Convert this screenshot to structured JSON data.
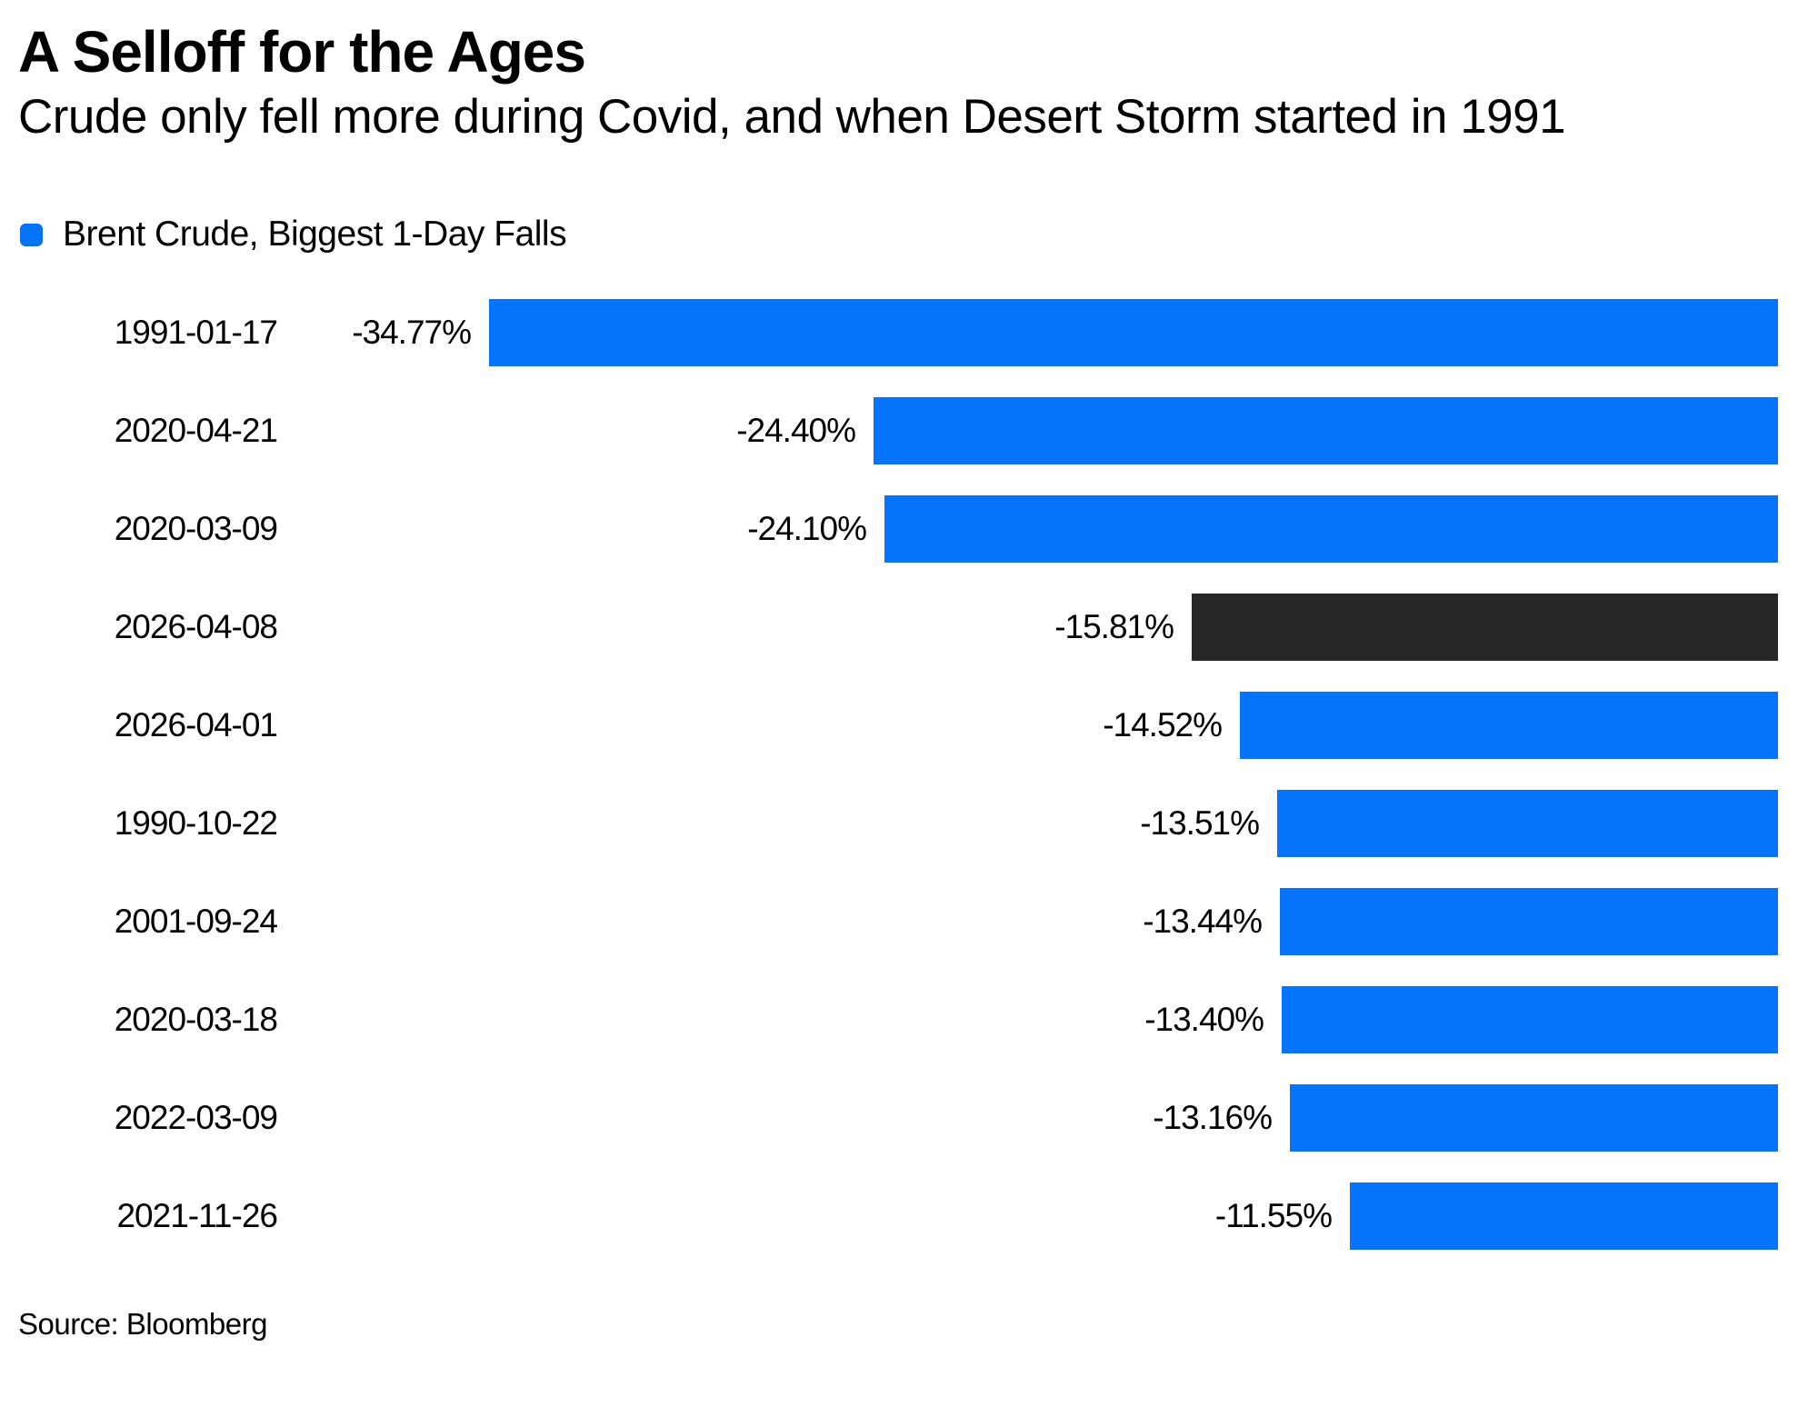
{
  "header": {
    "title": "A Selloff for the Ages",
    "subtitle": "Crude only fell more during Covid, and when Desert Storm started in 1991"
  },
  "legend": {
    "label": "Brent Crude, Biggest 1-Day Falls"
  },
  "source": {
    "text": "Source: Bloomberg"
  },
  "colors": {
    "bar_blue": "#0673fb",
    "bar_highlight": "#272727",
    "background": "#ffffff",
    "text": "#000000"
  },
  "chart_data": {
    "type": "bar",
    "orientation": "horizontal",
    "title": "A Selloff for the Ages",
    "subtitle": "Crude only fell more during Covid, and when Desert Storm started in 1991",
    "series_name": "Brent Crude, Biggest 1-Day Falls",
    "categories": [
      "1991-01-17",
      "2020-04-21",
      "2020-03-09",
      "2026-04-08",
      "2026-04-01",
      "1990-10-22",
      "2001-09-24",
      "2020-03-18",
      "2022-03-09",
      "2021-11-26"
    ],
    "values": [
      -34.77,
      -24.4,
      -24.1,
      -15.81,
      -14.52,
      -13.51,
      -13.44,
      -13.4,
      -13.16,
      -11.55
    ],
    "value_labels": [
      "-34.77%",
      "-24.40%",
      "-24.10%",
      "-15.81%",
      "-14.52%",
      "-13.51%",
      "-13.44%",
      "-13.40%",
      "-13.16%",
      "-11.55%"
    ],
    "highlight_category": "2026-04-08",
    "value_axis_anchor": "right",
    "xlim": [
      -34.77,
      0
    ],
    "grid": false,
    "legend_position": "top-left",
    "source": "Source: Bloomberg"
  }
}
